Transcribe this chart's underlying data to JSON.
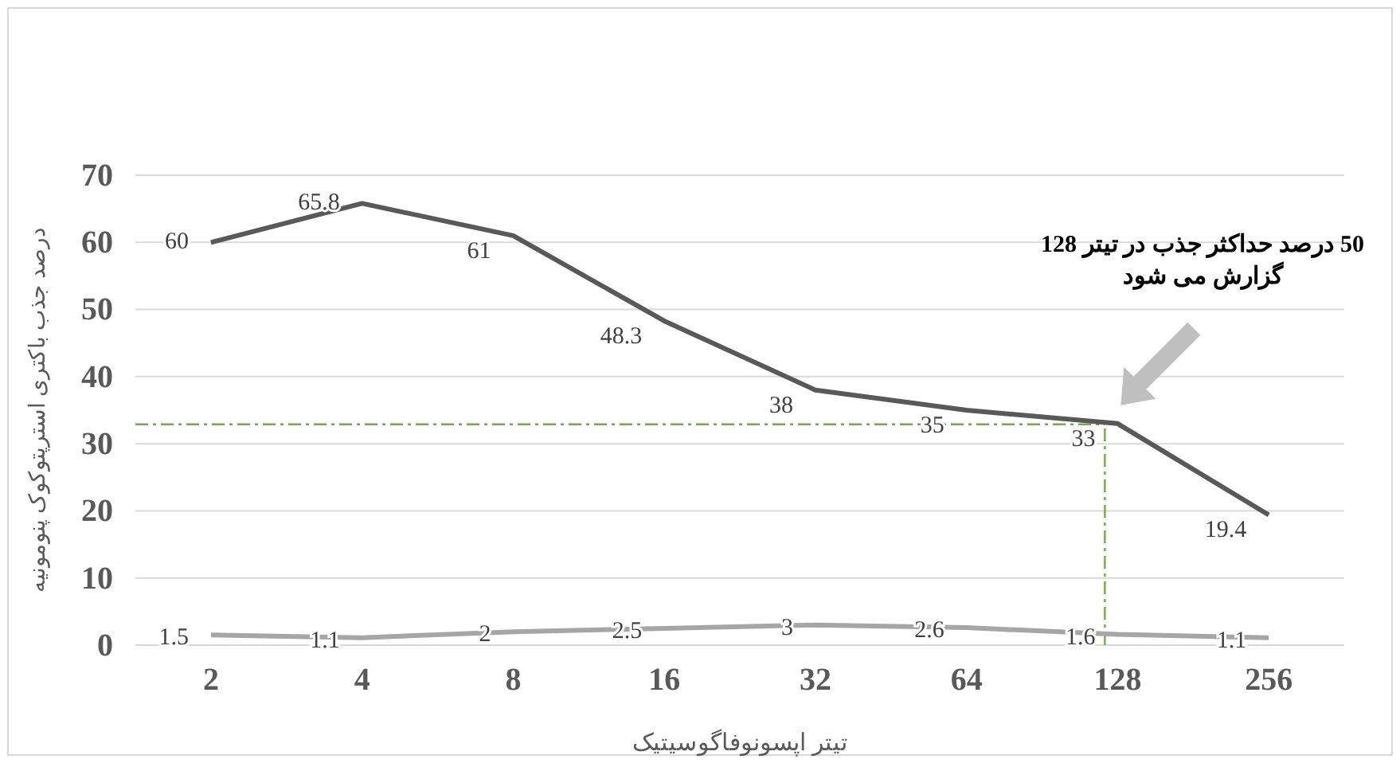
{
  "chart_data": {
    "type": "line",
    "xlabel": "تیتر اپسونوفاگوسیتیک",
    "ylabel": "درصد جذب باکتری استرپتوکوک پنومونیه",
    "categories": [
      "2",
      "4",
      "8",
      "16",
      "32",
      "64",
      "128",
      "256"
    ],
    "series": [
      {
        "color": "#595959",
        "values": [
          60,
          65.8,
          61,
          48.3,
          38,
          35,
          33,
          19.4
        ]
      },
      {
        "color": "#a6a6a6",
        "values": [
          1.5,
          1.1,
          2,
          2.5,
          3,
          2.6,
          1.6,
          1.1
        ]
      }
    ],
    "ylim": [
      0,
      70
    ],
    "yticks": [
      0,
      10,
      20,
      30,
      40,
      50,
      60,
      70
    ],
    "grid": "y",
    "data_labels": true,
    "marker": "none",
    "line_style": "solid",
    "ref_lines": [
      {
        "axis": "y",
        "value": 32.9,
        "color": "#70ad47",
        "line_style": "dashed"
      },
      {
        "axis": "x",
        "value": "128",
        "color": "#70ad47",
        "line_style": "dashed"
      }
    ],
    "annotations": [
      "50 درصد حداکثر جذب در تیتر 128 گزارش می شود"
    ]
  }
}
